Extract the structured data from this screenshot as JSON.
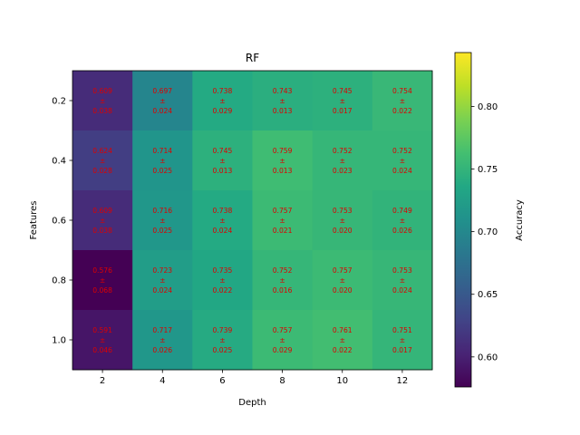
{
  "chart_data": {
    "type": "heatmap",
    "title": "RF",
    "xlabel": "Depth",
    "ylabel": "Features",
    "x_categories": [
      "2",
      "4",
      "6",
      "8",
      "10",
      "12"
    ],
    "y_categories": [
      "0.2",
      "0.4",
      "0.6",
      "0.8",
      "1.0"
    ],
    "values": [
      [
        0.609,
        0.697,
        0.738,
        0.743,
        0.745,
        0.754
      ],
      [
        0.624,
        0.714,
        0.745,
        0.759,
        0.752,
        0.752
      ],
      [
        0.609,
        0.716,
        0.738,
        0.757,
        0.753,
        0.749
      ],
      [
        0.576,
        0.723,
        0.735,
        0.752,
        0.757,
        0.753
      ],
      [
        0.591,
        0.717,
        0.739,
        0.757,
        0.761,
        0.751
      ]
    ],
    "errors": [
      [
        0.038,
        0.024,
        0.029,
        0.013,
        0.017,
        0.022
      ],
      [
        0.028,
        0.025,
        0.013,
        0.013,
        0.023,
        0.024
      ],
      [
        0.038,
        0.025,
        0.024,
        0.021,
        0.02,
        0.026
      ],
      [
        0.068,
        0.024,
        0.022,
        0.016,
        0.02,
        0.024
      ],
      [
        0.046,
        0.026,
        0.025,
        0.029,
        0.022,
        0.017
      ]
    ],
    "pm_symbol": "±",
    "colorbar": {
      "label": "Accuracy",
      "colormap": "viridis",
      "vmin": 0.576,
      "vmax": 0.843,
      "ticks": [
        "0.60",
        "0.65",
        "0.70",
        "0.75",
        "0.80"
      ]
    },
    "annotation_color": "#dd0000"
  }
}
